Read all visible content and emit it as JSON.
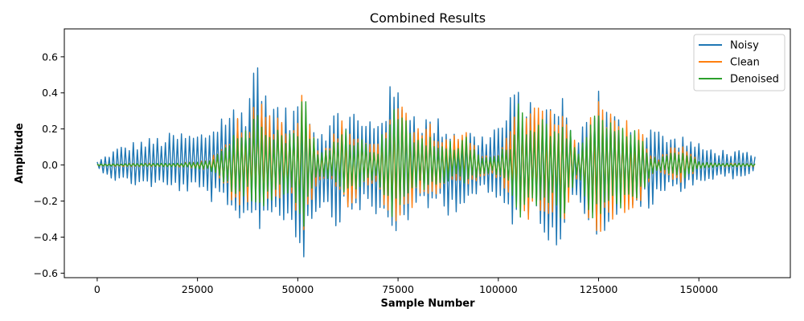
{
  "chart_data": {
    "type": "line",
    "title": "Combined Results",
    "xlabel": "Sample Number",
    "ylabel": "Amplitude",
    "xlim": [
      -8200,
      172800
    ],
    "ylim": [
      -0.625,
      0.755
    ],
    "x_ticks": [
      0,
      25000,
      50000,
      75000,
      100000,
      125000,
      150000
    ],
    "y_ticks": [
      -0.6,
      -0.4,
      -0.2,
      0.0,
      0.2,
      0.4,
      0.6
    ],
    "x_tick_labels": [
      "0",
      "25000",
      "50000",
      "75000",
      "100000",
      "125000",
      "150000"
    ],
    "y_tick_labels": [
      "−0.6",
      "−0.4",
      "−0.2",
      "0.0",
      "0.2",
      "0.4",
      "0.6"
    ],
    "legend": {
      "position": "upper-right"
    },
    "grid": false,
    "sample_step": 500,
    "x": [
      0,
      164000
    ],
    "series": [
      {
        "name": "Noisy",
        "color": "#1f77b4",
        "envelope_x": [
          0,
          5000,
          10000,
          15000,
          20000,
          25000,
          28000,
          31000,
          33000,
          35000,
          37000,
          39000,
          40000,
          42000,
          45000,
          48000,
          50000,
          51000,
          52000,
          53000,
          55000,
          58000,
          60000,
          62000,
          64000,
          66000,
          68000,
          70000,
          72000,
          74000,
          76000,
          78000,
          80000,
          82000,
          84000,
          86000,
          88000,
          90000,
          92000,
          95000,
          98000,
          100000,
          102000,
          104000,
          106000,
          108000,
          110000,
          112000,
          114000,
          116000,
          118000,
          120000,
          122000,
          124000,
          125000,
          126000,
          128000,
          130000,
          132000,
          134000,
          136000,
          138000,
          140000,
          142000,
          144000,
          146000,
          148000,
          150000,
          152000,
          155000,
          158000,
          160000,
          162000,
          164000
        ],
        "envelope_max": [
          0.02,
          0.1,
          0.14,
          0.16,
          0.19,
          0.18,
          0.22,
          0.3,
          0.35,
          0.32,
          0.38,
          0.6,
          0.7,
          0.4,
          0.35,
          0.3,
          0.4,
          0.48,
          0.45,
          0.3,
          0.22,
          0.25,
          0.35,
          0.3,
          0.33,
          0.25,
          0.28,
          0.3,
          0.4,
          0.48,
          0.4,
          0.35,
          0.3,
          0.28,
          0.27,
          0.26,
          0.22,
          0.2,
          0.22,
          0.16,
          0.2,
          0.25,
          0.3,
          0.47,
          0.38,
          0.35,
          0.42,
          0.35,
          0.33,
          0.45,
          0.2,
          0.18,
          0.3,
          0.4,
          0.45,
          0.35,
          0.3,
          0.28,
          0.25,
          0.22,
          0.2,
          0.25,
          0.2,
          0.18,
          0.16,
          0.17,
          0.15,
          0.12,
          0.1,
          0.09,
          0.08,
          0.08,
          0.07,
          0.05
        ],
        "envelope_min": [
          -0.02,
          -0.1,
          -0.12,
          -0.13,
          -0.15,
          -0.16,
          -0.2,
          -0.25,
          -0.35,
          -0.32,
          -0.3,
          -0.35,
          -0.38,
          -0.3,
          -0.32,
          -0.35,
          -0.45,
          -0.55,
          -0.5,
          -0.35,
          -0.25,
          -0.3,
          -0.35,
          -0.3,
          -0.28,
          -0.25,
          -0.3,
          -0.32,
          -0.35,
          -0.4,
          -0.38,
          -0.3,
          -0.28,
          -0.28,
          -0.25,
          -0.22,
          -0.3,
          -0.25,
          -0.22,
          -0.18,
          -0.2,
          -0.22,
          -0.3,
          -0.35,
          -0.3,
          -0.3,
          -0.32,
          -0.4,
          -0.47,
          -0.45,
          -0.18,
          -0.2,
          -0.3,
          -0.38,
          -0.42,
          -0.4,
          -0.35,
          -0.28,
          -0.25,
          -0.3,
          -0.22,
          -0.28,
          -0.2,
          -0.16,
          -0.14,
          -0.15,
          -0.12,
          -0.1,
          -0.1,
          -0.08,
          -0.08,
          -0.07,
          -0.06,
          -0.05
        ]
      },
      {
        "name": "Clean",
        "color": "#ff7f0e",
        "envelope_x": [
          0,
          10000,
          20000,
          28000,
          32000,
          34000,
          36000,
          38000,
          40000,
          42000,
          44000,
          46000,
          48000,
          50000,
          51000,
          52000,
          53000,
          55000,
          58000,
          60000,
          62000,
          64000,
          66000,
          68000,
          70000,
          72000,
          74000,
          76000,
          78000,
          80000,
          82000,
          84000,
          86000,
          88000,
          90000,
          92000,
          95000,
          98000,
          100000,
          103000,
          105000,
          107000,
          110000,
          113000,
          116000,
          118000,
          120000,
          123000,
          125000,
          126000,
          127000,
          130000,
          133000,
          136000,
          138000,
          140000,
          143000,
          146000,
          150000,
          155000,
          160000,
          164000
        ],
        "envelope_max": [
          0.005,
          0.01,
          0.01,
          0.03,
          0.15,
          0.25,
          0.28,
          0.2,
          0.45,
          0.35,
          0.3,
          0.25,
          0.2,
          0.3,
          0.42,
          0.4,
          0.3,
          0.08,
          0.12,
          0.25,
          0.28,
          0.22,
          0.18,
          0.15,
          0.12,
          0.3,
          0.45,
          0.35,
          0.3,
          0.28,
          0.26,
          0.24,
          0.22,
          0.18,
          0.15,
          0.2,
          0.08,
          0.06,
          0.08,
          0.2,
          0.38,
          0.35,
          0.33,
          0.3,
          0.38,
          0.25,
          0.08,
          0.3,
          0.38,
          0.35,
          0.3,
          0.25,
          0.25,
          0.2,
          0.06,
          0.04,
          0.1,
          0.12,
          0.02,
          0.01,
          0.01,
          0.01
        ],
        "envelope_min": [
          -0.005,
          -0.01,
          -0.01,
          -0.03,
          -0.15,
          -0.22,
          -0.25,
          -0.2,
          -0.3,
          -0.25,
          -0.22,
          -0.2,
          -0.2,
          -0.3,
          -0.38,
          -0.35,
          -0.25,
          -0.08,
          -0.1,
          -0.2,
          -0.28,
          -0.2,
          -0.15,
          -0.12,
          -0.1,
          -0.3,
          -0.32,
          -0.3,
          -0.25,
          -0.22,
          -0.2,
          -0.18,
          -0.15,
          -0.12,
          -0.1,
          -0.15,
          -0.08,
          -0.06,
          -0.08,
          -0.2,
          -0.3,
          -0.32,
          -0.3,
          -0.28,
          -0.35,
          -0.2,
          -0.06,
          -0.35,
          -0.45,
          -0.5,
          -0.35,
          -0.28,
          -0.25,
          -0.2,
          -0.06,
          -0.04,
          -0.08,
          -0.1,
          -0.02,
          -0.01,
          -0.01,
          -0.01
        ]
      },
      {
        "name": "Denoised",
        "color": "#2ca02c",
        "envelope_x": [
          0,
          10000,
          20000,
          28000,
          32000,
          34000,
          36000,
          38000,
          40000,
          42000,
          44000,
          46000,
          48000,
          50000,
          51000,
          52000,
          53000,
          55000,
          58000,
          60000,
          62000,
          64000,
          66000,
          68000,
          70000,
          72000,
          74000,
          76000,
          78000,
          80000,
          82000,
          84000,
          86000,
          88000,
          90000,
          92000,
          95000,
          98000,
          100000,
          103000,
          105000,
          107000,
          110000,
          113000,
          116000,
          118000,
          120000,
          123000,
          125000,
          126000,
          127000,
          130000,
          133000,
          136000,
          138000,
          140000,
          143000,
          146000,
          150000,
          155000,
          160000,
          164000
        ],
        "envelope_max": [
          0.005,
          0.008,
          0.01,
          0.03,
          0.12,
          0.2,
          0.22,
          0.18,
          0.46,
          0.28,
          0.25,
          0.2,
          0.18,
          0.28,
          0.45,
          0.4,
          0.25,
          0.07,
          0.1,
          0.22,
          0.22,
          0.18,
          0.15,
          0.12,
          0.1,
          0.25,
          0.4,
          0.28,
          0.22,
          0.18,
          0.16,
          0.15,
          0.14,
          0.14,
          0.12,
          0.16,
          0.06,
          0.05,
          0.06,
          0.15,
          0.4,
          0.3,
          0.3,
          0.25,
          0.32,
          0.2,
          0.06,
          0.25,
          0.35,
          0.3,
          0.25,
          0.22,
          0.2,
          0.18,
          0.05,
          0.03,
          0.08,
          0.1,
          0.02,
          0.01,
          0.01,
          0.008
        ],
        "envelope_min": [
          -0.005,
          -0.008,
          -0.01,
          -0.03,
          -0.12,
          -0.2,
          -0.22,
          -0.18,
          -0.28,
          -0.22,
          -0.2,
          -0.18,
          -0.18,
          -0.28,
          -0.38,
          -0.35,
          -0.22,
          -0.07,
          -0.08,
          -0.18,
          -0.25,
          -0.18,
          -0.12,
          -0.1,
          -0.08,
          -0.3,
          -0.3,
          -0.25,
          -0.2,
          -0.15,
          -0.14,
          -0.12,
          -0.12,
          -0.1,
          -0.08,
          -0.12,
          -0.06,
          -0.05,
          -0.06,
          -0.15,
          -0.3,
          -0.3,
          -0.28,
          -0.25,
          -0.32,
          -0.18,
          -0.05,
          -0.3,
          -0.4,
          -0.4,
          -0.3,
          -0.25,
          -0.22,
          -0.18,
          -0.05,
          -0.03,
          -0.06,
          -0.08,
          -0.02,
          -0.01,
          -0.01,
          -0.008
        ]
      }
    ]
  }
}
